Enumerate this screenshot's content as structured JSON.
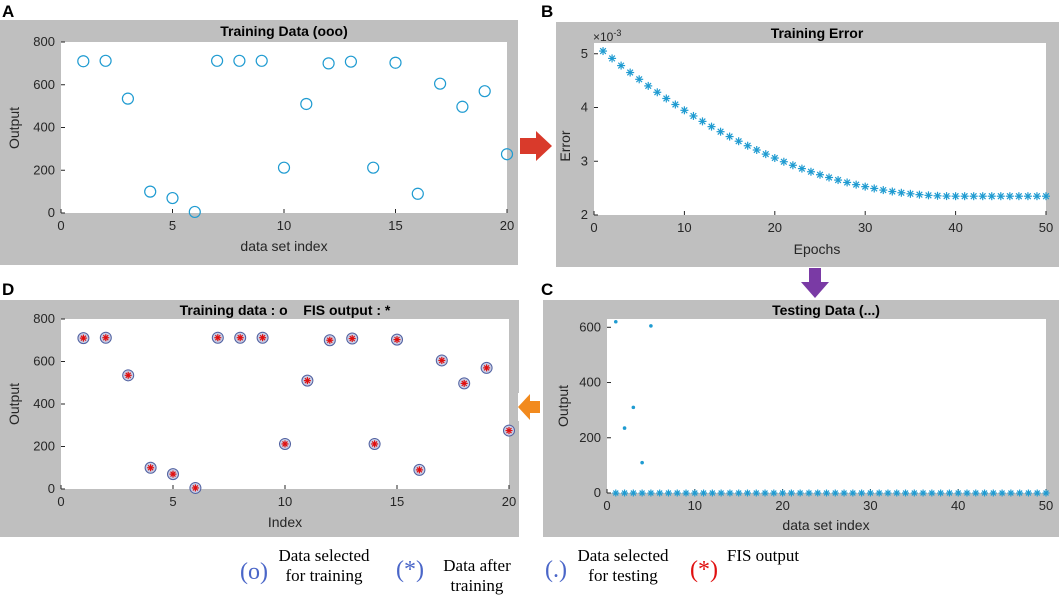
{
  "panels": [
    {
      "letter": "A",
      "title": "Training Data (ooo)",
      "xlabel": "data set index",
      "ylabel": "Output",
      "type": "scatter",
      "marker": "circle",
      "xlim": [
        0,
        20
      ],
      "ylim": [
        0,
        800
      ],
      "xticks": [
        0,
        5,
        10,
        15,
        20
      ],
      "yticks": [
        0,
        200,
        400,
        600,
        800
      ]
    },
    {
      "letter": "B",
      "title": "Training Error",
      "xlabel": "Epochs",
      "ylabel": "Error",
      "exponent_label": "×10",
      "exponent_power": "-3",
      "type": "scatter",
      "marker": "asterisk",
      "xlim": [
        0,
        50
      ],
      "ylim": [
        2,
        5.2
      ],
      "xticks": [
        0,
        10,
        20,
        30,
        40,
        50
      ],
      "yticks": [
        2,
        3,
        4,
        5
      ]
    },
    {
      "letter": "C",
      "title": "Testing Data (...)",
      "xlabel": "data set index",
      "ylabel": "Output",
      "type": "scatter",
      "marker": "dot+asterisk",
      "xlim": [
        0,
        50
      ],
      "ylim": [
        0,
        630
      ],
      "xticks": [
        0,
        10,
        20,
        30,
        40,
        50
      ],
      "yticks": [
        0,
        200,
        400,
        600
      ]
    },
    {
      "letter": "D",
      "title": "Training data : o    FIS output : *",
      "xlabel": "Index",
      "ylabel": "Output",
      "type": "scatter",
      "marker": "circle+star",
      "xlim": [
        0,
        20
      ],
      "ylim": [
        0,
        800
      ],
      "xticks": [
        0,
        5,
        10,
        15,
        20
      ],
      "yticks": [
        0,
        200,
        400,
        600,
        800
      ]
    }
  ],
  "chart_data": [
    {
      "type": "scatter",
      "title": "Training Data (ooo)",
      "xlabel": "data set index",
      "ylabel": "Output",
      "x": [
        1,
        2,
        3,
        4,
        5,
        6,
        7,
        8,
        9,
        10,
        11,
        12,
        13,
        14,
        15,
        16,
        17,
        18,
        19,
        20
      ],
      "y": [
        710,
        712,
        535,
        100,
        70,
        5,
        712,
        712,
        712,
        212,
        510,
        700,
        708,
        212,
        703,
        90,
        605,
        497,
        570,
        275
      ]
    },
    {
      "type": "scatter",
      "title": "Training Error",
      "xlabel": "Epochs",
      "ylabel": "Error",
      "y_scale": "×10^-3",
      "x_range": [
        1,
        50
      ],
      "y_start": 5.05,
      "y_end": 2.35,
      "flat_from_epoch": 40
    },
    {
      "type": "scatter",
      "title": "Testing Data (...)",
      "xlabel": "data set index",
      "ylabel": "Output",
      "series": [
        {
          "name": "Data selected for testing",
          "x": [
            1,
            2,
            3,
            4,
            5
          ],
          "y": [
            620,
            235,
            310,
            110,
            605
          ]
        },
        {
          "name": "Data after training",
          "x_range": [
            1,
            50
          ],
          "y": 0
        }
      ]
    },
    {
      "type": "scatter",
      "title": "Training data : o    FIS output : *",
      "xlabel": "Index",
      "ylabel": "Output",
      "series": [
        {
          "name": "Training data",
          "x": [
            1,
            2,
            3,
            4,
            5,
            6,
            7,
            8,
            9,
            10,
            11,
            12,
            13,
            14,
            15,
            16,
            17,
            18,
            19,
            20
          ],
          "y": [
            710,
            712,
            535,
            100,
            70,
            5,
            712,
            712,
            712,
            212,
            510,
            700,
            708,
            212,
            703,
            90,
            605,
            497,
            570,
            275
          ]
        },
        {
          "name": "FIS output",
          "x": [
            1,
            2,
            3,
            4,
            5,
            6,
            7,
            8,
            9,
            10,
            11,
            12,
            13,
            14,
            15,
            16,
            17,
            18,
            19,
            20
          ],
          "y": [
            710,
            712,
            535,
            100,
            70,
            5,
            712,
            712,
            712,
            212,
            510,
            700,
            708,
            212,
            703,
            90,
            605,
            497,
            570,
            275
          ]
        }
      ]
    }
  ],
  "legend": {
    "items": [
      {
        "symbol": "o",
        "text": "Data selected for training",
        "color": "#4a66c8"
      },
      {
        "symbol": "*",
        "text": "Data after training",
        "color": "#4a66c8"
      },
      {
        "symbol": ".",
        "text": "Data selected for testing",
        "color": "#4a66c8"
      },
      {
        "symbol": "*",
        "text": "FIS output",
        "color": "#e01010"
      }
    ]
  },
  "colors": {
    "panel_bg": "#bfbfbf",
    "plot_bg": "#ffffff",
    "marker": "#1f9bd1",
    "fis_star": "#e01010",
    "arrow_red": "#d93a2b",
    "arrow_purple": "#7a3aa5",
    "arrow_orange": "#f28a1e"
  }
}
